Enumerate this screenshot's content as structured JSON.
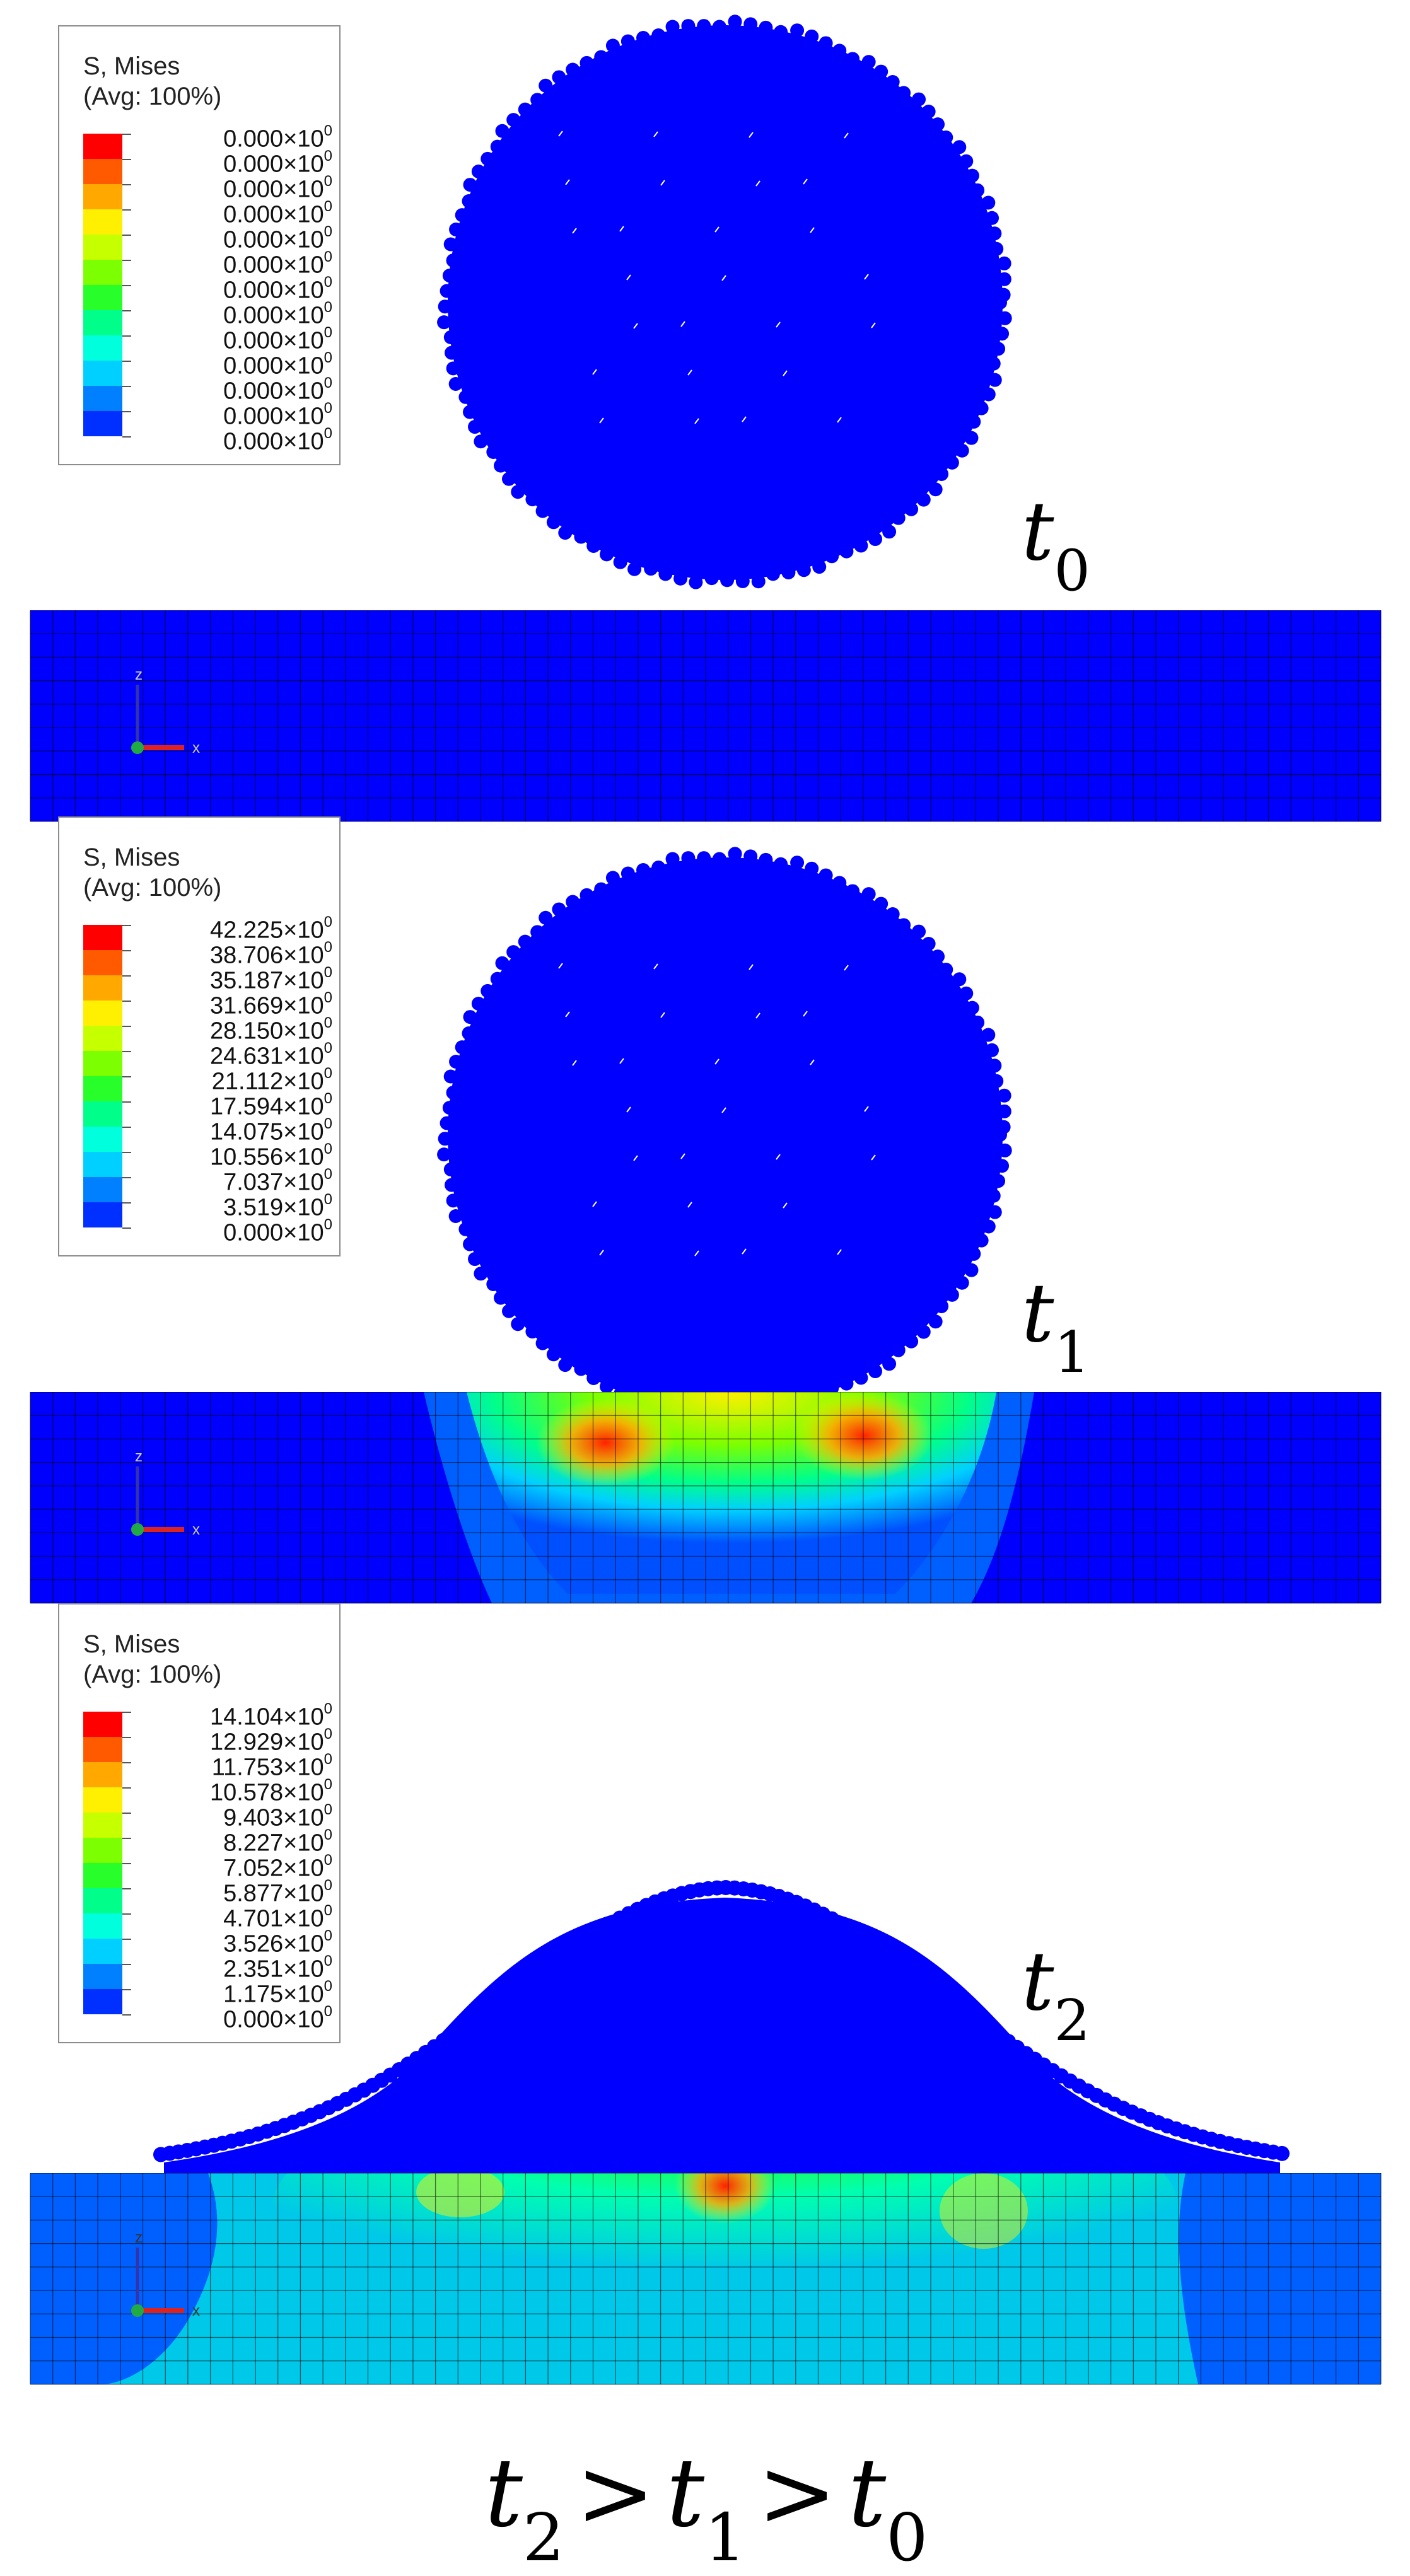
{
  "legend_title": "S, Mises",
  "legend_subtitle": "(Avg: 100%)",
  "exponent_suffix": "×10",
  "exponent": "0",
  "colors": [
    "#ff0000",
    "#ff5a00",
    "#ffa800",
    "#ffef00",
    "#c6ff00",
    "#7cff00",
    "#28ff2a",
    "#00ff8a",
    "#00ffdc",
    "#00d0ff",
    "#0080ff",
    "#0030ff"
  ],
  "panels": [
    {
      "time_base": "t",
      "time_sub": "0",
      "legend_values": [
        "0.000",
        "0.000",
        "0.000",
        "0.000",
        "0.000",
        "0.000",
        "0.000",
        "0.000",
        "0.000",
        "0.000",
        "0.000",
        "0.000",
        "0.000"
      ]
    },
    {
      "time_base": "t",
      "time_sub": "1",
      "legend_values": [
        "42.225",
        "38.706",
        "35.187",
        "31.669",
        "28.150",
        "24.631",
        "21.112",
        "17.594",
        "14.075",
        "10.556",
        "7.037",
        "3.519",
        "0.000"
      ]
    },
    {
      "time_base": "t",
      "time_sub": "2",
      "legend_values": [
        "14.104",
        "12.929",
        "11.753",
        "10.578",
        "9.403",
        "8.227",
        "7.052",
        "5.877",
        "4.701",
        "3.526",
        "2.351",
        "1.175",
        "0.000"
      ]
    }
  ],
  "axis_labels": {
    "z": "z",
    "x": "x"
  },
  "relation": {
    "t": "t",
    "sub2": "2",
    "sub1": "1",
    "sub0": "0",
    "op": ">"
  }
}
